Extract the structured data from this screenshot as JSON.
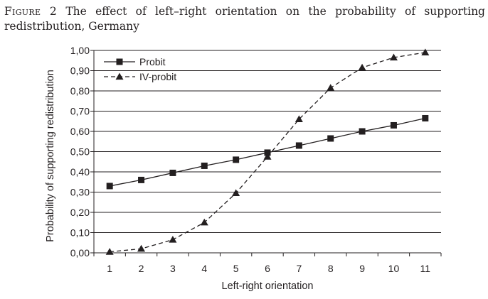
{
  "caption": {
    "figure_label": "Figure 2",
    "text": "The effect of left–right orientation on the probability of supporting redistribution, Germany"
  },
  "chart_data": {
    "type": "line",
    "title": "",
    "xlabel": "Left-right orientation",
    "ylabel": "Probability of supporting redistribution",
    "x": [
      1,
      2,
      3,
      4,
      5,
      6,
      7,
      8,
      9,
      10,
      11
    ],
    "x_tick_labels": [
      "1",
      "2",
      "3",
      "4",
      "5",
      "6",
      "7",
      "8",
      "9",
      "10",
      "11"
    ],
    "xlim": [
      0.5,
      11.5
    ],
    "ylim": [
      0,
      1
    ],
    "y_ticks": [
      0,
      0.1,
      0.2,
      0.3,
      0.4,
      0.5,
      0.6,
      0.7,
      0.8,
      0.9,
      1.0
    ],
    "y_tick_labels": [
      "0,00",
      "0,10",
      "0,20",
      "0,30",
      "0,40",
      "0,50",
      "0,60",
      "0,70",
      "0,80",
      "0,90",
      "1,00"
    ],
    "grid": "horizontal",
    "legend_position": "top-left",
    "series": [
      {
        "name": "Probit",
        "line_style": "solid",
        "marker": "square",
        "color": "#231f20",
        "values": [
          0.33,
          0.36,
          0.395,
          0.43,
          0.46,
          0.495,
          0.53,
          0.565,
          0.6,
          0.63,
          0.665
        ]
      },
      {
        "name": "IV-probit",
        "line_style": "dashed",
        "marker": "triangle",
        "color": "#231f20",
        "values": [
          0.005,
          0.02,
          0.065,
          0.15,
          0.295,
          0.475,
          0.66,
          0.815,
          0.915,
          0.965,
          0.99
        ]
      }
    ]
  }
}
